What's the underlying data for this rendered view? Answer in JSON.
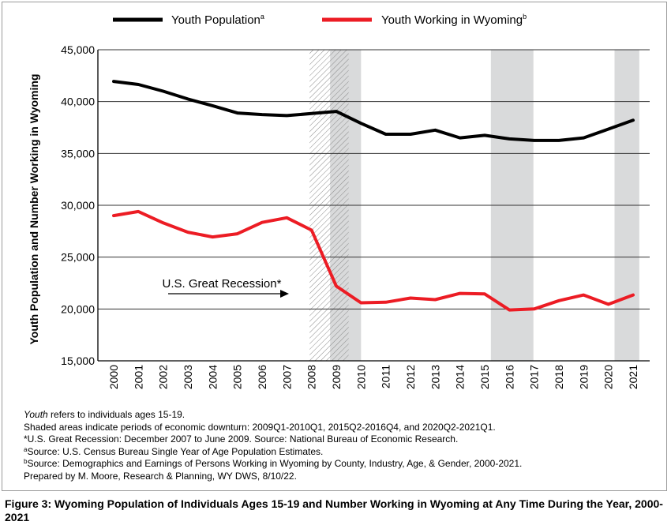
{
  "chart_data": {
    "type": "line",
    "x": [
      2000,
      2001,
      2002,
      2003,
      2004,
      2005,
      2006,
      2007,
      2008,
      2009,
      2010,
      2011,
      2012,
      2013,
      2014,
      2015,
      2016,
      2017,
      2018,
      2019,
      2020,
      2021
    ],
    "x_tick_labels": [
      "2000",
      "2001",
      "2002",
      "2003",
      "2004",
      "2005",
      "2006",
      "2007",
      "2008",
      "2009",
      "2010",
      "2011",
      "2012",
      "2013",
      "2014",
      "2015",
      "2016",
      "2017",
      "2018",
      "2019",
      "2020",
      "2021"
    ],
    "ylabel": "Youth Population and Number Working in Wyoming",
    "ylim": [
      15000,
      45000
    ],
    "y_ticks": [
      15000,
      20000,
      25000,
      30000,
      35000,
      40000,
      45000
    ],
    "y_tick_labels": [
      "15,000",
      "20,000",
      "25,000",
      "30,000",
      "35,000",
      "40,000",
      "45,000"
    ],
    "grid": "horizontal",
    "legend": "top",
    "series": [
      {
        "name": "Youth Population",
        "superscript": "a",
        "color": "#000000",
        "values": [
          41950,
          41650,
          41000,
          40250,
          39600,
          38900,
          38750,
          38650,
          38850,
          39050,
          37900,
          36850,
          36850,
          37250,
          36500,
          36750,
          36400,
          36250,
          36250,
          36500,
          37350,
          38200
        ]
      },
      {
        "name": "Youth Working in Wyoming",
        "superscript": "b",
        "color": "#ec1c24",
        "values": [
          29000,
          29400,
          28300,
          27400,
          26950,
          27250,
          28350,
          28800,
          27600,
          22200,
          20600,
          20650,
          21050,
          20900,
          21500,
          21450,
          19900,
          20000,
          20800,
          21350,
          20450,
          21350
        ]
      }
    ],
    "shaded_periods": [
      {
        "start": 2008.75,
        "end": 2010.0,
        "label": "2009Q1-2010Q1"
      },
      {
        "start": 2015.25,
        "end": 2016.97,
        "label": "2015Q2-2016Q4"
      },
      {
        "start": 2020.25,
        "end": 2021.25,
        "label": "2020Q2-2021Q1"
      }
    ],
    "recession": {
      "start": 2007.92,
      "end": 2009.5,
      "pattern": "diagonal-hatch"
    },
    "annotation": {
      "text": "U.S. Great Recession*",
      "arrow": "right"
    }
  },
  "notes": {
    "line1_italic": "Youth",
    "line1_rest": " refers to individuals ages 15-19.",
    "line2": "Shaded areas indicate periods of economic downturn: 2009Q1-2010Q1, 2015Q2-2016Q4, and 2020Q2-2021Q1.",
    "line3": "*U.S. Great Recession: December 2007 to June 2009. Source: National Bureau of Economic Research.",
    "line4_sup": "a",
    "line4": "Source: U.S. Census Bureau Single Year of Age Population Estimates.",
    "line5_sup": "b",
    "line5": "Source: Demographics and Earnings of Persons Working in Wyoming by County, Industry, Age, & Gender, 2000-2021.",
    "line6": "Prepared by M. Moore, Research & Planning, WY DWS, 8/10/22."
  },
  "caption": "Figure 3: Wyoming Population of Individuals Ages 15-19 and Number Working in Wyoming at Any Time During the Year, 2000-2021",
  "colors": {
    "shade": "#d9dadb",
    "hatch": "#8a8a8a",
    "grid": "#333333"
  }
}
